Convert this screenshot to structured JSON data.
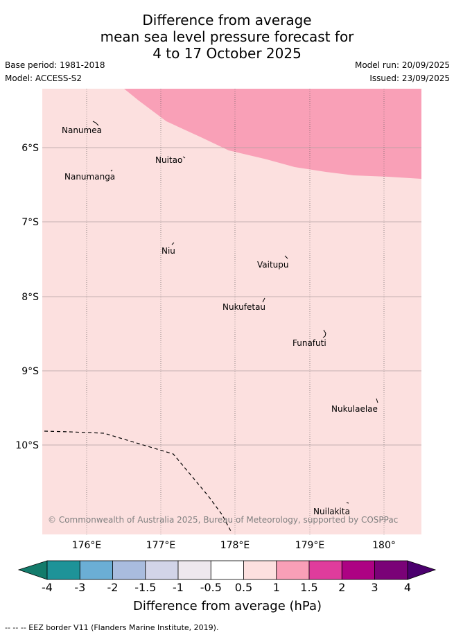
{
  "title": {
    "line1": "Difference from average",
    "line2": "mean sea level pressure forecast for",
    "line3": "4 to 17 October 2025"
  },
  "meta": {
    "base_period": "Base period: 1981-2018",
    "model": "Model: ACCESS-S2",
    "model_run": "Model run: 20/09/2025",
    "issued": "Issued: 23/09/2025"
  },
  "map": {
    "lat_labels": [
      "6°S",
      "7°S",
      "8°S",
      "9°S",
      "10°S"
    ],
    "lon_labels": [
      "176°E",
      "177°E",
      "178°E",
      "179°E",
      "180°"
    ],
    "places": [
      "Nanumea",
      "Nuitao",
      "Nanumanga",
      "Niu",
      "Vaitupu",
      "Nukufetau",
      "Funafuti",
      "Nukulaelae",
      "Nuilakita"
    ],
    "copyright": "© Commonwealth of Australia 2025, Bureau of Meteorology, supported by COSPPac",
    "background_class_color": "#fce0df",
    "anomaly_class_color": "#f9a0b7"
  },
  "colorbar": {
    "labels": [
      "-4",
      "-3",
      "-2",
      "-1.5",
      "-1",
      "-0.5",
      "0.5",
      "1",
      "1.5",
      "2",
      "3",
      "4"
    ],
    "colors": [
      "#1e9398",
      "#6baed5",
      "#a9bcde",
      "#d2d4e8",
      "#eee8ee",
      "#ffffff",
      "#fde0df",
      "#f99fb7",
      "#df3c9c",
      "#ad0283",
      "#7a0277"
    ],
    "under_color": "#137b6b",
    "over_color": "#4b006e",
    "title": "Difference from average (hPa)"
  },
  "footer": "-- -- -- EEZ border V11 (Flanders Marine Institute, 2019)."
}
